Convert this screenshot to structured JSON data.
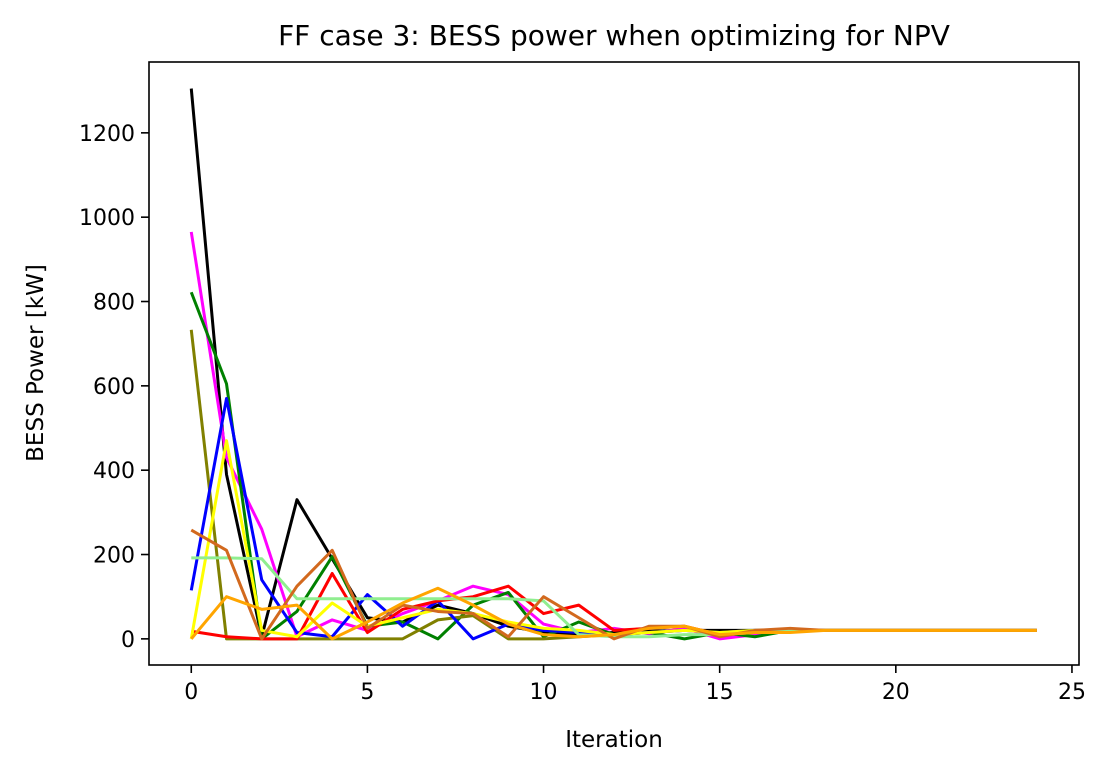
{
  "chart_data": {
    "type": "line",
    "title": "FF case 3: BESS power when optimizing for NPV",
    "xlabel": "Iteration",
    "ylabel": "BESS Power [kW]",
    "xlim": [
      -1.2,
      25.2
    ],
    "ylim": [
      -62,
      1368
    ],
    "x_ticks": [
      0,
      5,
      10,
      15,
      20,
      25
    ],
    "y_ticks": [
      0,
      200,
      400,
      600,
      800,
      1000,
      1200
    ],
    "grid": false,
    "legend": "none",
    "series": [
      {
        "color": "#000000",
        "x": [
          0,
          1,
          2,
          3,
          4,
          5,
          6,
          7,
          8,
          9,
          10,
          11,
          12,
          13,
          14,
          15,
          16,
          17,
          18,
          19,
          20,
          21,
          22,
          23,
          24
        ],
        "values": [
          1305,
          390,
          5,
          330,
          190,
          50,
          40,
          80,
          60,
          30,
          15,
          10,
          15,
          18,
          20,
          20,
          20,
          20,
          20,
          20,
          20,
          20,
          20,
          20,
          20
        ]
      },
      {
        "color": "#ff00ff",
        "x": [
          0,
          1,
          2,
          3,
          4,
          5,
          6,
          7,
          8,
          9,
          10,
          11,
          12,
          13,
          14,
          15,
          16,
          17,
          18,
          19,
          20,
          21,
          22,
          23,
          24
        ],
        "values": [
          965,
          430,
          260,
          5,
          45,
          20,
          60,
          90,
          125,
          105,
          35,
          15,
          25,
          12,
          25,
          0,
          10,
          20,
          20,
          20,
          20,
          20,
          20,
          20,
          20
        ]
      },
      {
        "color": "#008000",
        "x": [
          0,
          1,
          2,
          3,
          4,
          5,
          6,
          7,
          8,
          9,
          10,
          11,
          12,
          13,
          14,
          15,
          16,
          17,
          18,
          19,
          20,
          21,
          22,
          23,
          24
        ],
        "values": [
          822,
          605,
          0,
          65,
          195,
          30,
          40,
          0,
          80,
          110,
          5,
          40,
          10,
          15,
          0,
          15,
          5,
          20,
          20,
          20,
          20,
          20,
          20,
          20,
          20
        ]
      },
      {
        "color": "#808000",
        "x": [
          0,
          1,
          2,
          3,
          4,
          5,
          6,
          7,
          8,
          9,
          10,
          11,
          12,
          13,
          14,
          15,
          16,
          17,
          18,
          19,
          20,
          21,
          22,
          23,
          24
        ],
        "values": [
          733,
          0,
          0,
          0,
          0,
          0,
          0,
          45,
          55,
          0,
          0,
          5,
          10,
          15,
          20,
          15,
          20,
          20,
          20,
          20,
          20,
          20,
          20,
          20,
          20
        ]
      },
      {
        "color": "#0000ff",
        "x": [
          0,
          1,
          2,
          3,
          4,
          5,
          6,
          7,
          8,
          9,
          10,
          11,
          12,
          13,
          14,
          15,
          16,
          17,
          18,
          19,
          20,
          21,
          22,
          23,
          24
        ],
        "values": [
          115,
          570,
          140,
          15,
          5,
          105,
          30,
          90,
          0,
          35,
          20,
          15,
          10,
          15,
          20,
          15,
          20,
          20,
          20,
          20,
          20,
          20,
          20,
          20,
          20
        ]
      },
      {
        "color": "#ff0000",
        "x": [
          0,
          1,
          2,
          3,
          4,
          5,
          6,
          7,
          8,
          9,
          10,
          11,
          12,
          13,
          14,
          15,
          16,
          17,
          18,
          19,
          20,
          21,
          22,
          23,
          24
        ],
        "values": [
          18,
          5,
          0,
          0,
          155,
          15,
          70,
          90,
          100,
          125,
          60,
          80,
          20,
          25,
          30,
          10,
          15,
          20,
          20,
          20,
          20,
          20,
          20,
          20,
          20
        ]
      },
      {
        "color": "#ffff00",
        "x": [
          0,
          1,
          2,
          3,
          4,
          5,
          6,
          7,
          8,
          9,
          10,
          11,
          12,
          13,
          14,
          15,
          16,
          17,
          18,
          19,
          20,
          21,
          22,
          23,
          24
        ],
        "values": [
          0,
          470,
          20,
          5,
          85,
          30,
          50,
          70,
          60,
          40,
          25,
          20,
          10,
          15,
          20,
          15,
          20,
          20,
          20,
          20,
          20,
          20,
          20,
          20,
          20
        ]
      },
      {
        "color": "#90ee90",
        "x": [
          0,
          1,
          2,
          3,
          4,
          5,
          6,
          7,
          8,
          9,
          10,
          11,
          12,
          13,
          14,
          15,
          16,
          17,
          18,
          19,
          20,
          21,
          22,
          23,
          24
        ],
        "values": [
          192,
          192,
          190,
          95,
          95,
          95,
          95,
          95,
          95,
          95,
          90,
          10,
          5,
          5,
          10,
          10,
          15,
          20,
          20,
          20,
          20,
          20,
          20,
          20,
          20
        ]
      },
      {
        "color": "#d2691e",
        "x": [
          0,
          1,
          2,
          3,
          4,
          5,
          6,
          7,
          8,
          9,
          10,
          11,
          12,
          13,
          14,
          15,
          16,
          17,
          18,
          19,
          20,
          21,
          22,
          23,
          24
        ],
        "values": [
          258,
          210,
          0,
          125,
          210,
          25,
          80,
          65,
          60,
          5,
          100,
          50,
          0,
          30,
          30,
          5,
          20,
          25,
          20,
          20,
          20,
          20,
          20,
          20,
          20
        ]
      },
      {
        "color": "#ffa500",
        "x": [
          0,
          1,
          2,
          3,
          4,
          5,
          6,
          7,
          8,
          9,
          10,
          11,
          12,
          13,
          14,
          15,
          16,
          17,
          18,
          19,
          20,
          21,
          22,
          23,
          24
        ],
        "values": [
          0,
          100,
          70,
          80,
          0,
          40,
          85,
          120,
          80,
          35,
          10,
          5,
          10,
          25,
          30,
          10,
          15,
          15,
          20,
          20,
          20,
          20,
          20,
          20,
          20
        ]
      }
    ]
  }
}
